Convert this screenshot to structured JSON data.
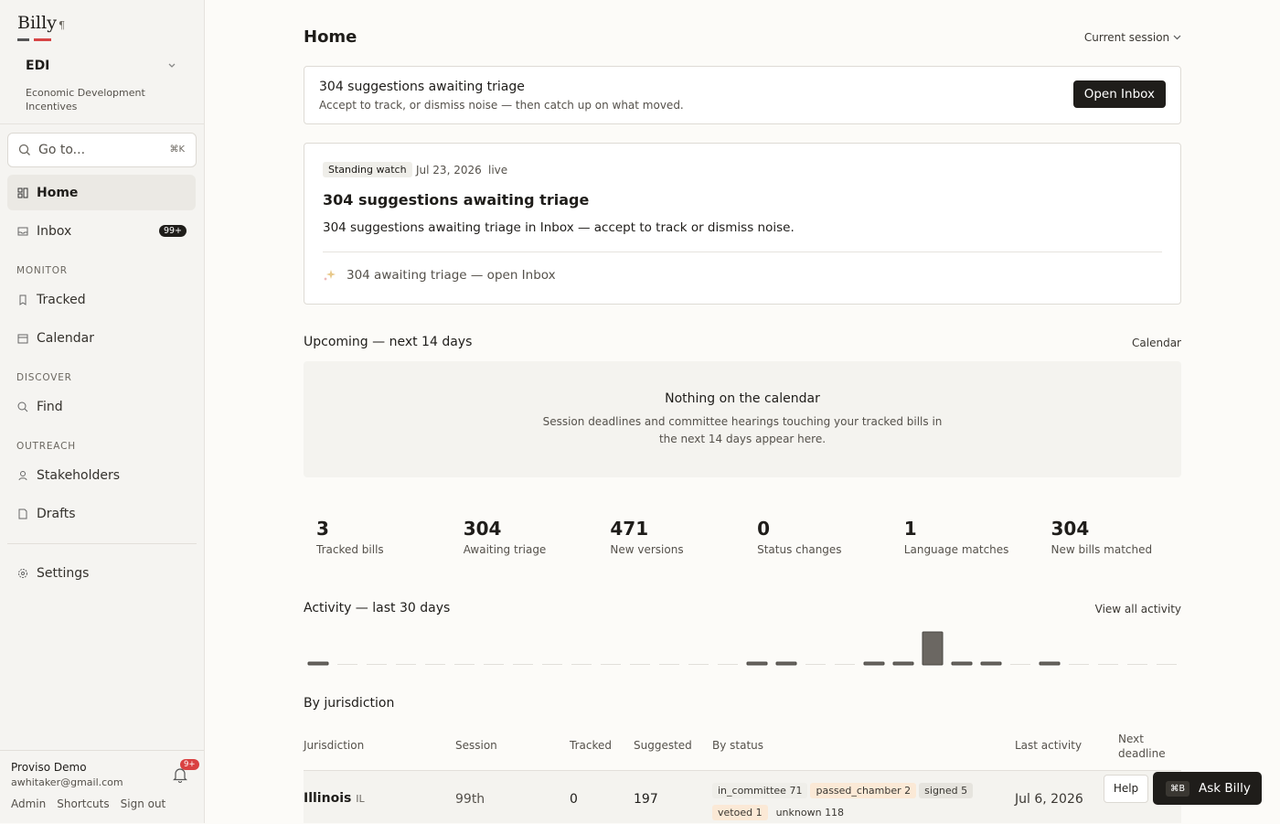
{
  "sidebar": {
    "brand": "Billy",
    "brand_mark": "¶",
    "workspace": {
      "code": "EDI",
      "name": "Economic Development Incentives"
    },
    "search": {
      "placeholder": "Go to...",
      "shortcut": "⌘K"
    },
    "nav": [
      {
        "label": "Home"
      },
      {
        "label": "Inbox",
        "badge": "99+"
      }
    ],
    "sections": [
      {
        "title": "MONITOR",
        "items": [
          "Tracked",
          "Calendar"
        ]
      },
      {
        "title": "DISCOVER",
        "items": [
          "Find"
        ]
      },
      {
        "title": "OUTREACH",
        "items": [
          "Stakeholders",
          "Drafts"
        ]
      }
    ],
    "settings": "Settings",
    "user": {
      "name": "Proviso Demo",
      "email": "awhitaker@gmail.com",
      "notifications": "9+",
      "links": [
        "Admin",
        "Shortcuts",
        "Sign out"
      ]
    }
  },
  "header": {
    "title": "Home",
    "session": "Current session"
  },
  "banner": {
    "title": "304 suggestions awaiting triage",
    "subtitle": "Accept to track, or dismiss noise — then catch up on what moved.",
    "button": "Open Inbox"
  },
  "watch": {
    "tag": "Standing watch",
    "date": "Jul 23, 2026",
    "status": "live",
    "title": "304 suggestions awaiting triage",
    "body": "304 suggestions awaiting triage in Inbox — accept to track or dismiss noise.",
    "footer": "304 awaiting triage — open Inbox"
  },
  "upcoming": {
    "title": "Upcoming — next 14 days",
    "link": "Calendar",
    "empty_title": "Nothing on the calendar",
    "empty_body": "Session deadlines and committee hearings touching your tracked bills in the next 14 days appear here."
  },
  "stats": [
    {
      "value": 3,
      "label": "Tracked bills"
    },
    {
      "value": 304,
      "label": "Awaiting triage"
    },
    {
      "value": 471,
      "label": "New versions"
    },
    {
      "value": 0,
      "label": "Status changes"
    },
    {
      "value": 1,
      "label": "Language matches"
    },
    {
      "value": 304,
      "label": "New bills matched"
    }
  ],
  "activity": {
    "title": "Activity — last 30 days",
    "link": "View all activity",
    "values": [
      8,
      0,
      0,
      0,
      0,
      0,
      0,
      0,
      0,
      0,
      0,
      0,
      0,
      0,
      0,
      8,
      8,
      0,
      0,
      8,
      8,
      120,
      8,
      8,
      0,
      8,
      0,
      0,
      0,
      0
    ]
  },
  "jurisdictions": {
    "title": "By jurisdiction",
    "columns": [
      "Jurisdiction",
      "Session",
      "Tracked",
      "Suggested",
      "By status",
      "Last activity",
      "Next deadline"
    ],
    "rows": [
      {
        "name": "Illinois",
        "code": "IL",
        "session": "99th",
        "tracked": 0,
        "suggested": 197,
        "statuses": [
          {
            "name": "in_committee",
            "count": 71
          },
          {
            "name": "passed_chamber",
            "count": 2
          },
          {
            "name": "signed",
            "count": 5
          },
          {
            "name": "vetoed",
            "count": 1
          },
          {
            "name": "unknown",
            "count": 118
          }
        ],
        "last_activity": "Jul 6, 2026"
      }
    ]
  },
  "help": "Help",
  "ask": {
    "shortcut": "⌘B",
    "label": "Ask Billy"
  }
}
